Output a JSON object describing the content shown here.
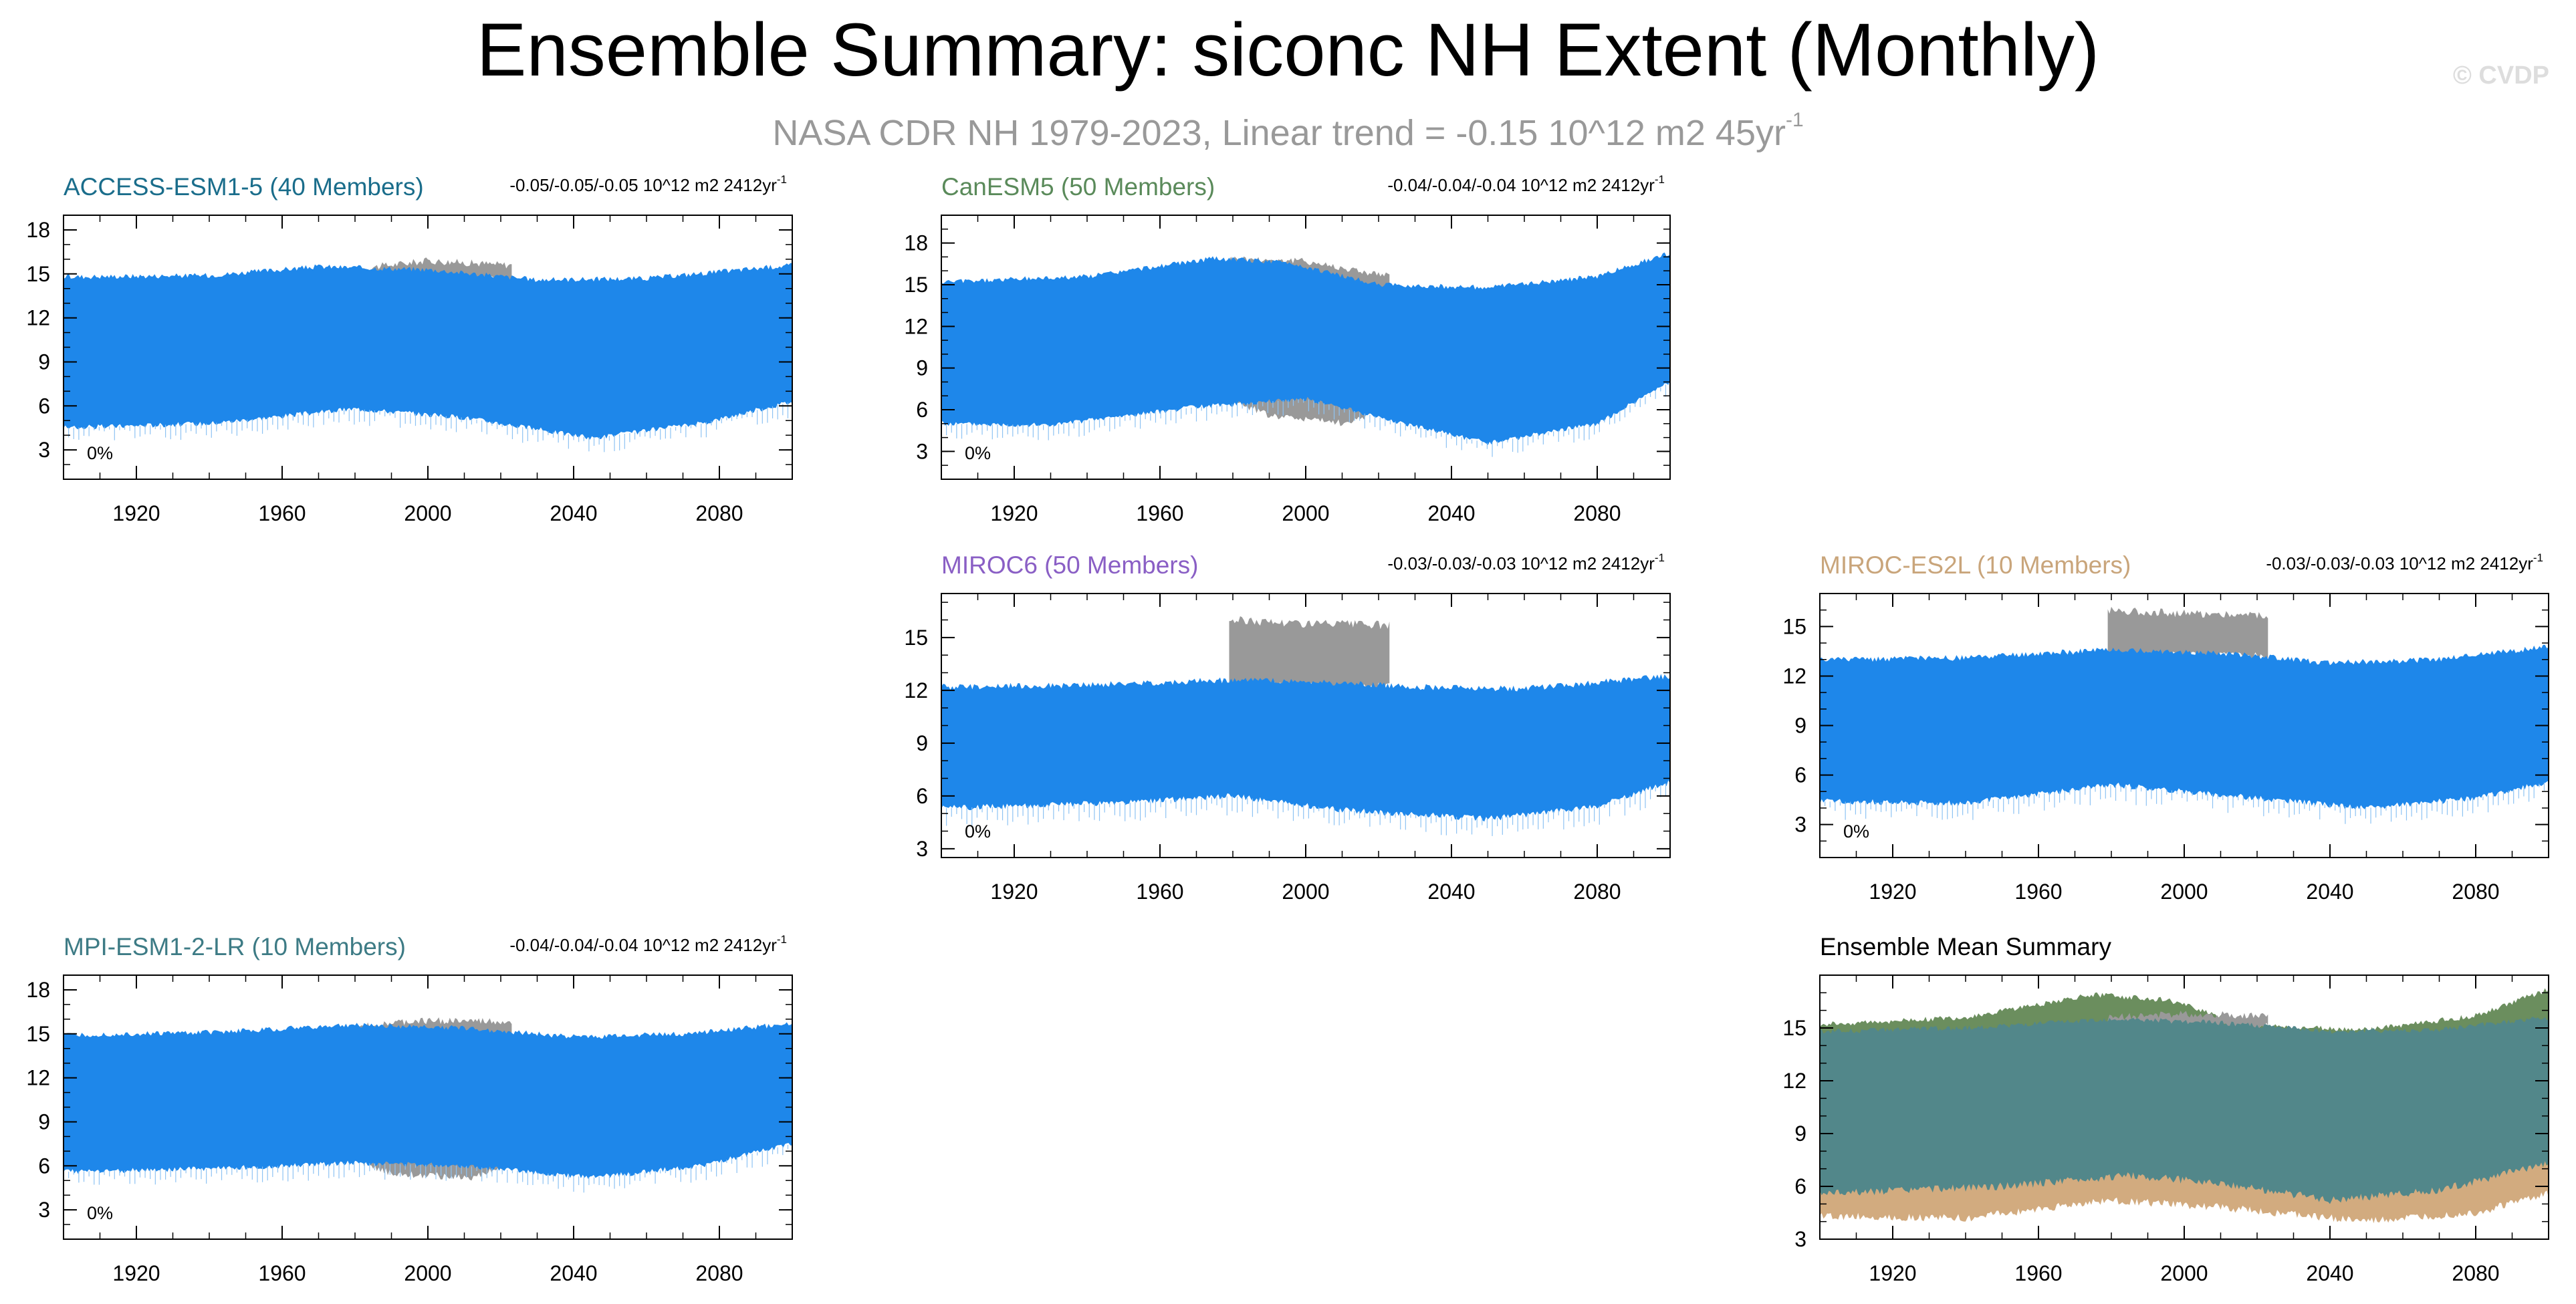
{
  "title": "Ensemble Summary: siconc NH Extent (Monthly)",
  "subtitle_main": "NASA CDR NH 1979-2023, Linear trend = -0.15 10^12 m2 45yr",
  "subtitle_exp": "-1",
  "watermark": "© CVDP",
  "colors": {
    "model_fill": "#1e87ea",
    "obs_fill": "#999999",
    "mean_green": "#6b8e5e",
    "mean_teal": "#52878a",
    "mean_tan": "#d2ab7f"
  },
  "chart_data": [
    {
      "type": "area",
      "title": "ACCESS-ESM1-5 (40 Members)",
      "title_color": "#1a6d8b",
      "trend_text": "-0.05/-0.05/-0.05 10^12 m2 2412yr",
      "trend_exp": "-1",
      "pct_text": "0%",
      "x_ticks": [
        1920,
        1960,
        2000,
        2040,
        2080
      ],
      "y_ticks": [
        3,
        6,
        9,
        12,
        15,
        18
      ],
      "xlim": [
        1900,
        2100
      ],
      "ylim": [
        1,
        19
      ],
      "model_upper": [
        [
          1900,
          14.8
        ],
        [
          1940,
          14.9
        ],
        [
          1970,
          15.5
        ],
        [
          2000,
          15.3
        ],
        [
          2030,
          14.6
        ],
        [
          2060,
          14.7
        ],
        [
          2100,
          15.6
        ]
      ],
      "model_lower": [
        [
          1900,
          4.5
        ],
        [
          1940,
          4.8
        ],
        [
          1980,
          5.8
        ],
        [
          2010,
          5.2
        ],
        [
          2045,
          3.8
        ],
        [
          2075,
          4.8
        ],
        [
          2100,
          6.3
        ]
      ],
      "obs_upper": [
        [
          1979,
          15.3
        ],
        [
          2000,
          15.9
        ],
        [
          2023,
          15.6
        ]
      ],
      "obs_lower": [
        [
          1979,
          14.8
        ],
        [
          2023,
          14.6
        ]
      ]
    },
    {
      "type": "area",
      "title": "CanESM5 (50 Members)",
      "title_color": "#5a8a5a",
      "trend_text": "-0.04/-0.04/-0.04 10^12 m2 2412yr",
      "trend_exp": "-1",
      "pct_text": "0%",
      "x_ticks": [
        1920,
        1960,
        2000,
        2040,
        2080
      ],
      "y_ticks": [
        3,
        6,
        9,
        12,
        15,
        18
      ],
      "xlim": [
        1900,
        2100
      ],
      "ylim": [
        1,
        20
      ],
      "model_upper": [
        [
          1900,
          15.2
        ],
        [
          1940,
          15.6
        ],
        [
          1975,
          16.9
        ],
        [
          1995,
          16.6
        ],
        [
          2020,
          15.0
        ],
        [
          2050,
          14.8
        ],
        [
          2080,
          15.6
        ],
        [
          2100,
          17.3
        ]
      ],
      "model_lower": [
        [
          1900,
          5.0
        ],
        [
          1930,
          4.9
        ],
        [
          1970,
          6.2
        ],
        [
          2000,
          6.8
        ],
        [
          2030,
          4.8
        ],
        [
          2050,
          3.6
        ],
        [
          2080,
          5.0
        ],
        [
          2100,
          8.0
        ]
      ],
      "obs_upper": [
        [
          1979,
          16.9
        ],
        [
          2000,
          16.7
        ],
        [
          2023,
          15.6
        ]
      ],
      "obs_lower": [
        [
          1979,
          6.8
        ],
        [
          1990,
          5.6
        ],
        [
          2012,
          5.0
        ],
        [
          2023,
          6.4
        ]
      ]
    },
    {
      "type": "area",
      "title": "MIROC6 (50 Members)",
      "title_color": "#8a5fc5",
      "trend_text": "-0.03/-0.03/-0.03 10^12 m2 2412yr",
      "trend_exp": "-1",
      "pct_text": "0%",
      "x_ticks": [
        1920,
        1960,
        2000,
        2040,
        2080
      ],
      "y_ticks": [
        3,
        6,
        9,
        12,
        15
      ],
      "xlim": [
        1900,
        2100
      ],
      "ylim": [
        2.5,
        17.5
      ],
      "model_upper": [
        [
          1900,
          12.2
        ],
        [
          1940,
          12.3
        ],
        [
          1980,
          12.6
        ],
        [
          2000,
          12.5
        ],
        [
          2030,
          12.2
        ],
        [
          2060,
          12.1
        ],
        [
          2100,
          12.8
        ]
      ],
      "model_lower": [
        [
          1900,
          5.3
        ],
        [
          1950,
          5.6
        ],
        [
          1980,
          6.0
        ],
        [
          2010,
          5.2
        ],
        [
          2050,
          4.7
        ],
        [
          2080,
          5.4
        ],
        [
          2100,
          6.8
        ]
      ],
      "obs_upper": [
        [
          1979,
          16.0
        ],
        [
          2000,
          15.8
        ],
        [
          2023,
          15.7
        ]
      ],
      "obs_lower": [
        [
          1979,
          12.3
        ],
        [
          2023,
          12.2
        ]
      ]
    },
    {
      "type": "area",
      "title": "MIROC-ES2L (10 Members)",
      "title_color": "#c9a57b",
      "trend_text": "-0.03/-0.03/-0.03 10^12 m2 2412yr",
      "trend_exp": "-1",
      "pct_text": "0%",
      "x_ticks": [
        1920,
        1960,
        2000,
        2040,
        2080
      ],
      "y_ticks": [
        3,
        6,
        9,
        12,
        15
      ],
      "xlim": [
        1900,
        2100
      ],
      "ylim": [
        1,
        17
      ],
      "model_upper": [
        [
          1900,
          13.0
        ],
        [
          1940,
          13.1
        ],
        [
          1980,
          13.6
        ],
        [
          2010,
          13.4
        ],
        [
          2040,
          12.8
        ],
        [
          2070,
          13.0
        ],
        [
          2100,
          13.8
        ]
      ],
      "model_lower": [
        [
          1900,
          4.4
        ],
        [
          1940,
          4.3
        ],
        [
          1980,
          5.4
        ],
        [
          2010,
          4.8
        ],
        [
          2050,
          4.0
        ],
        [
          2080,
          4.6
        ],
        [
          2100,
          5.6
        ]
      ],
      "obs_upper": [
        [
          1979,
          16.0
        ],
        [
          2000,
          15.8
        ],
        [
          2023,
          15.7
        ]
      ],
      "obs_lower": [
        [
          1979,
          13.3
        ],
        [
          2023,
          13.2
        ]
      ]
    },
    {
      "type": "area",
      "title": "MPI-ESM1-2-LR (10 Members)",
      "title_color": "#3d7b85",
      "trend_text": "-0.04/-0.04/-0.04 10^12 m2 2412yr",
      "trend_exp": "-1",
      "pct_text": "0%",
      "x_ticks": [
        1920,
        1960,
        2000,
        2040,
        2080
      ],
      "y_ticks": [
        3,
        6,
        9,
        12,
        15,
        18
      ],
      "xlim": [
        1900,
        2100
      ],
      "ylim": [
        1,
        19
      ],
      "model_upper": [
        [
          1900,
          14.9
        ],
        [
          1940,
          15.1
        ],
        [
          1980,
          15.6
        ],
        [
          2010,
          15.4
        ],
        [
          2040,
          14.8
        ],
        [
          2070,
          15.0
        ],
        [
          2100,
          15.7
        ]
      ],
      "model_lower": [
        [
          1900,
          5.6
        ],
        [
          1940,
          5.8
        ],
        [
          1980,
          6.2
        ],
        [
          2010,
          6.0
        ],
        [
          2045,
          5.2
        ],
        [
          2075,
          6.0
        ],
        [
          2100,
          7.5
        ]
      ],
      "obs_upper": [
        [
          1979,
          15.5
        ],
        [
          2000,
          15.9
        ],
        [
          2023,
          15.8
        ]
      ],
      "obs_lower": [
        [
          1979,
          6.5
        ],
        [
          1990,
          5.5
        ],
        [
          2012,
          5.2
        ],
        [
          2023,
          6.2
        ]
      ]
    },
    {
      "type": "area",
      "title": "Ensemble Mean Summary",
      "title_color": "#000000",
      "x_ticks": [
        1920,
        1960,
        2000,
        2040,
        2080
      ],
      "y_ticks": [
        3,
        6,
        9,
        12,
        15
      ],
      "xlim": [
        1900,
        2100
      ],
      "ylim": [
        3,
        18
      ],
      "green_upper": [
        [
          1900,
          15.2
        ],
        [
          1940,
          15.6
        ],
        [
          1975,
          16.9
        ],
        [
          1995,
          16.6
        ],
        [
          2020,
          15.1
        ],
        [
          2050,
          14.9
        ],
        [
          2080,
          15.7
        ],
        [
          2100,
          17.2
        ]
      ],
      "teal_upper": [
        [
          1900,
          14.8
        ],
        [
          1940,
          15.0
        ],
        [
          1980,
          15.5
        ],
        [
          2010,
          15.3
        ],
        [
          2040,
          14.8
        ],
        [
          2070,
          14.9
        ],
        [
          2100,
          15.6
        ]
      ],
      "teal_lower": [
        [
          1900,
          5.2
        ],
        [
          1950,
          5.6
        ],
        [
          1990,
          6.0
        ],
        [
          2040,
          5.0
        ],
        [
          2080,
          5.6
        ],
        [
          2100,
          7.2
        ]
      ],
      "tan_upper": [
        [
          1900,
          5.6
        ],
        [
          1950,
          6.0
        ],
        [
          1985,
          6.6
        ],
        [
          2010,
          6.2
        ],
        [
          2040,
          5.2
        ],
        [
          2070,
          5.8
        ],
        [
          2100,
          7.3
        ]
      ],
      "tan_lower": [
        [
          1900,
          4.3
        ],
        [
          1940,
          4.2
        ],
        [
          1980,
          5.2
        ],
        [
          2010,
          4.8
        ],
        [
          2050,
          4.0
        ],
        [
          2080,
          4.5
        ],
        [
          2100,
          5.6
        ]
      ],
      "obs_upper": [
        [
          1979,
          15.6
        ],
        [
          2000,
          15.8
        ],
        [
          2023,
          15.7
        ]
      ],
      "obs_lower": [
        [
          1979,
          15.2
        ],
        [
          2023,
          15.1
        ]
      ]
    }
  ]
}
